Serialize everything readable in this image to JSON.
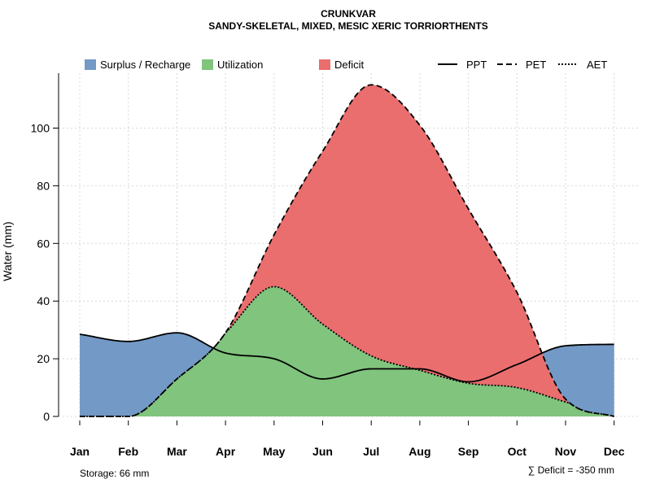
{
  "chart_data": {
    "type": "area",
    "title": "CRUNKVAR",
    "subtitle": "SANDY-SKELETAL, MIXED, MESIC XERIC TORRIORTHENTS",
    "xlabel": "",
    "ylabel": "Water (mm)",
    "ylim": [
      0,
      118
    ],
    "yticks": [
      0,
      20,
      40,
      60,
      80,
      100
    ],
    "grid": true,
    "categories": [
      "Jan",
      "Feb",
      "Mar",
      "Apr",
      "May",
      "Jun",
      "Jul",
      "Aug",
      "Sep",
      "Oct",
      "Nov",
      "Dec"
    ],
    "series": [
      {
        "name": "PPT",
        "line_style": "solid",
        "values": [
          28.5,
          26,
          29,
          22,
          20,
          13,
          16.5,
          16.5,
          12,
          18,
          24.5,
          25
        ]
      },
      {
        "name": "PET",
        "line_style": "dashed",
        "values": [
          0,
          0,
          13,
          29,
          63,
          92,
          115,
          101,
          72,
          43,
          6,
          0
        ]
      },
      {
        "name": "AET",
        "line_style": "dotted",
        "values": [
          0,
          0,
          13,
          29,
          45,
          32,
          21,
          16,
          11.5,
          10,
          5,
          0
        ]
      }
    ],
    "fills": [
      {
        "name": "Surplus / Recharge",
        "color": "#7399c6"
      },
      {
        "name": "Utilization",
        "color": "#80c47d"
      },
      {
        "name": "Deficit",
        "color": "#ea6e6e"
      }
    ],
    "legend_position": "top",
    "annotations": {
      "storage": "Storage: 66 mm",
      "deficit": "∑ Deficit = -350 mm"
    }
  }
}
